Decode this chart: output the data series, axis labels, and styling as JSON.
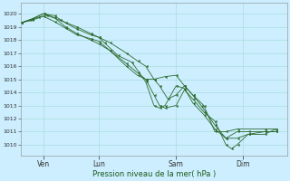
{
  "background_color": "#cceeff",
  "grid_color": "#aadddd",
  "line_color": "#2d6a2d",
  "marker_color": "#2d6a2d",
  "ylabel_ticks": [
    1010,
    1011,
    1012,
    1013,
    1014,
    1015,
    1016,
    1017,
    1018,
    1019,
    1020
  ],
  "xlim": [
    0.0,
    9.6
  ],
  "ylim": [
    1009.2,
    1020.8
  ],
  "xlabel": "Pression niveau de la mer( hPa )",
  "xtick_positions": [
    0.8,
    2.8,
    5.6,
    8.0
  ],
  "xtick_labels": [
    "Ven",
    "Lun",
    "Sam",
    "Dim"
  ],
  "series": [
    [
      0.0,
      1019.3,
      0.3,
      1019.5,
      0.6,
      1019.7,
      0.9,
      1019.9,
      1.4,
      1019.5,
      2.0,
      1019.0,
      2.5,
      1018.5,
      2.8,
      1018.2,
      3.2,
      1017.8,
      3.8,
      1017.0,
      4.2,
      1016.4,
      4.5,
      1016.0,
      4.8,
      1015.0,
      5.0,
      1014.5,
      5.3,
      1013.5,
      5.6,
      1013.8,
      5.9,
      1014.5,
      6.2,
      1013.8,
      6.5,
      1013.0,
      7.0,
      1011.5,
      7.4,
      1010.5,
      7.8,
      1011.0,
      8.2,
      1011.0,
      8.8,
      1011.0,
      9.2,
      1011.0
    ],
    [
      0.0,
      1019.3,
      0.4,
      1019.6,
      0.8,
      1020.0,
      1.2,
      1019.85,
      1.6,
      1019.3,
      2.0,
      1018.85,
      2.5,
      1018.4,
      2.8,
      1018.2,
      3.0,
      1017.8,
      3.5,
      1016.8,
      4.0,
      1016.3,
      4.5,
      1014.8,
      4.8,
      1013.0,
      5.0,
      1012.8,
      5.2,
      1013.0,
      5.6,
      1014.5,
      5.9,
      1014.3,
      6.2,
      1013.2,
      6.6,
      1012.3,
      7.0,
      1011.2,
      7.4,
      1010.5,
      7.8,
      1010.5,
      8.2,
      1010.8,
      8.8,
      1011.0,
      9.2,
      1011.0
    ],
    [
      0.0,
      1019.3,
      0.4,
      1019.6,
      0.8,
      1020.0,
      1.2,
      1019.7,
      1.6,
      1019.0,
      2.0,
      1018.5,
      2.5,
      1018.0,
      2.8,
      1017.7,
      3.2,
      1017.2,
      3.8,
      1016.2,
      4.2,
      1015.5,
      4.5,
      1015.0,
      4.8,
      1013.8,
      5.0,
      1013.0,
      5.2,
      1012.8,
      5.6,
      1013.0,
      5.9,
      1014.2,
      6.2,
      1013.5,
      6.6,
      1012.5,
      7.0,
      1011.8,
      7.4,
      1010.0,
      7.6,
      1009.7,
      7.8,
      1010.0,
      8.2,
      1010.8,
      8.8,
      1010.8,
      9.2,
      1011.2
    ],
    [
      0.0,
      1019.3,
      0.4,
      1019.5,
      0.8,
      1019.8,
      1.2,
      1019.4,
      1.6,
      1018.9,
      2.0,
      1018.4,
      2.5,
      1018.1,
      2.8,
      1017.9,
      3.2,
      1017.2,
      3.8,
      1016.0,
      4.2,
      1015.3,
      4.5,
      1015.0,
      4.8,
      1015.0,
      5.2,
      1015.2,
      5.6,
      1015.3,
      5.9,
      1014.5,
      6.2,
      1013.8,
      6.6,
      1013.0,
      7.0,
      1011.0,
      7.4,
      1011.0,
      7.8,
      1011.2,
      8.8,
      1011.2,
      9.2,
      1011.2
    ]
  ]
}
